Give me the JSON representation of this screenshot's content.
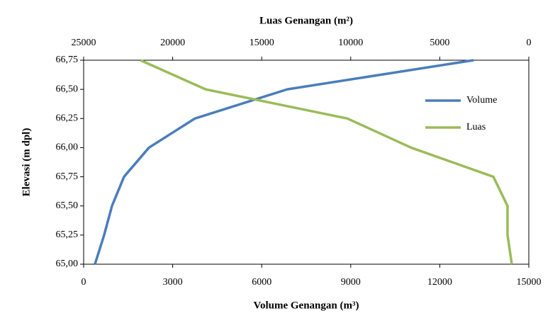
{
  "chart_data": {
    "type": "line",
    "xlabel": "Volume Genangan (m³)",
    "x2label": "Luas Genangan (m²)",
    "ylabel": "Elevasi (m dpl)",
    "y": [
      65.0,
      65.25,
      65.5,
      65.75,
      66.0,
      66.25,
      66.5,
      66.75
    ],
    "series": [
      {
        "name": "Volume",
        "color": "#4a7ebb",
        "axis": "x",
        "values": [
          380,
          690,
          955,
          1360,
          2200,
          3750,
          6860,
          13140
        ]
      },
      {
        "name": "Luas",
        "color": "#9bbb59",
        "axis": "x2",
        "values": [
          955,
          1195,
          1195,
          1990,
          6610,
          10190,
          18150,
          21815
        ]
      }
    ],
    "xlim": [
      0,
      15000
    ],
    "xticks": [
      0,
      3000,
      6000,
      9000,
      12000,
      15000
    ],
    "x2lim": [
      25000,
      0
    ],
    "x2ticks": [
      25000,
      20000,
      15000,
      10000,
      5000,
      0
    ],
    "ylim": [
      65,
      66.75
    ],
    "yticks": [
      {
        "value": 65,
        "label": "65,00"
      },
      {
        "value": 65.25,
        "label": "65,25"
      },
      {
        "value": 65.5,
        "label": "65,50"
      },
      {
        "value": 65.75,
        "label": "65,75"
      },
      {
        "value": 66,
        "label": "66,00"
      },
      {
        "value": 66.25,
        "label": "66,25"
      },
      {
        "value": 66.5,
        "label": "66,50"
      },
      {
        "value": 66.75,
        "label": "66,75"
      }
    ],
    "legend": "right"
  }
}
